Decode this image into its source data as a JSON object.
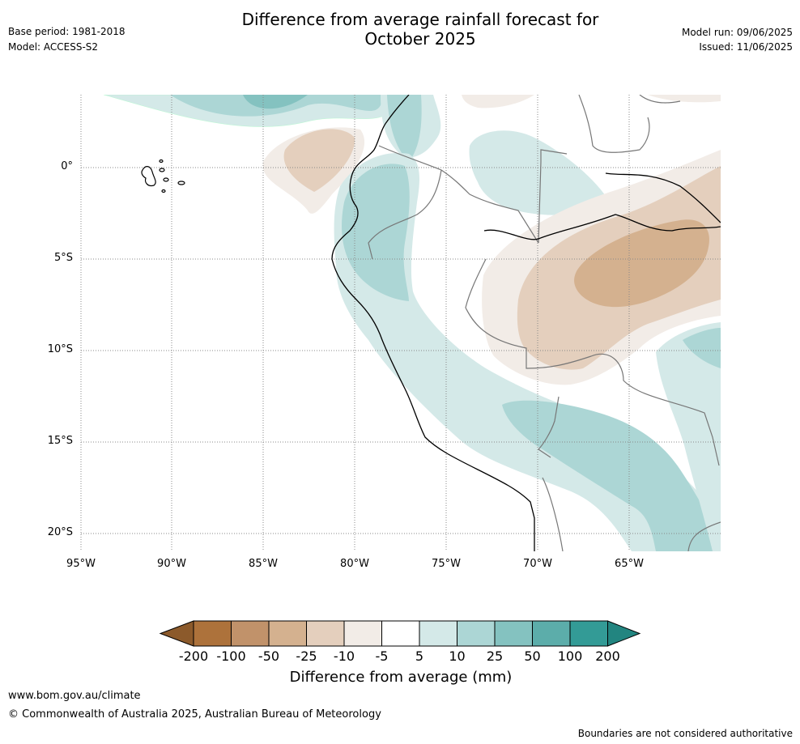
{
  "header": {
    "title_line1": "Difference from average rainfall forecast for",
    "title_line2": "October 2025",
    "base_period": "Base period: 1981-2018",
    "model": "Model: ACCESS-S2",
    "model_run": "Model run: 09/06/2025",
    "issued": "Issued: 11/06/2025"
  },
  "map": {
    "lat_labels": [
      "0°",
      "5°S",
      "10°S",
      "15°S",
      "20°S"
    ],
    "lon_labels": [
      "95°W",
      "90°W",
      "85°W",
      "80°W",
      "75°W",
      "70°W",
      "65°W"
    ],
    "extent": {
      "lon_min": -95,
      "lon_max": -60,
      "lat_min": -21,
      "lat_max": 4
    }
  },
  "colorbar": {
    "title": "Difference from average (mm)",
    "tick_labels": [
      "-200",
      "-100",
      "-50",
      "-25",
      "-10",
      "-5",
      "5",
      "10",
      "25",
      "50",
      "100",
      "200"
    ],
    "colors": [
      "#8c5a2b",
      "#ad723b",
      "#c1926a",
      "#d4b18f",
      "#e4cfbd",
      "#f2ece7",
      "#ffffff",
      "#d4e9e8",
      "#acd6d5",
      "#84c2c0",
      "#5cadaa",
      "#339b96",
      "#228580"
    ]
  },
  "footer": {
    "url": "www.bom.gov.au/climate",
    "copyright": "© Commonwealth of Australia 2025, Australian Bureau of Meteorology",
    "disclaimer": "Boundaries are not considered authoritative"
  }
}
